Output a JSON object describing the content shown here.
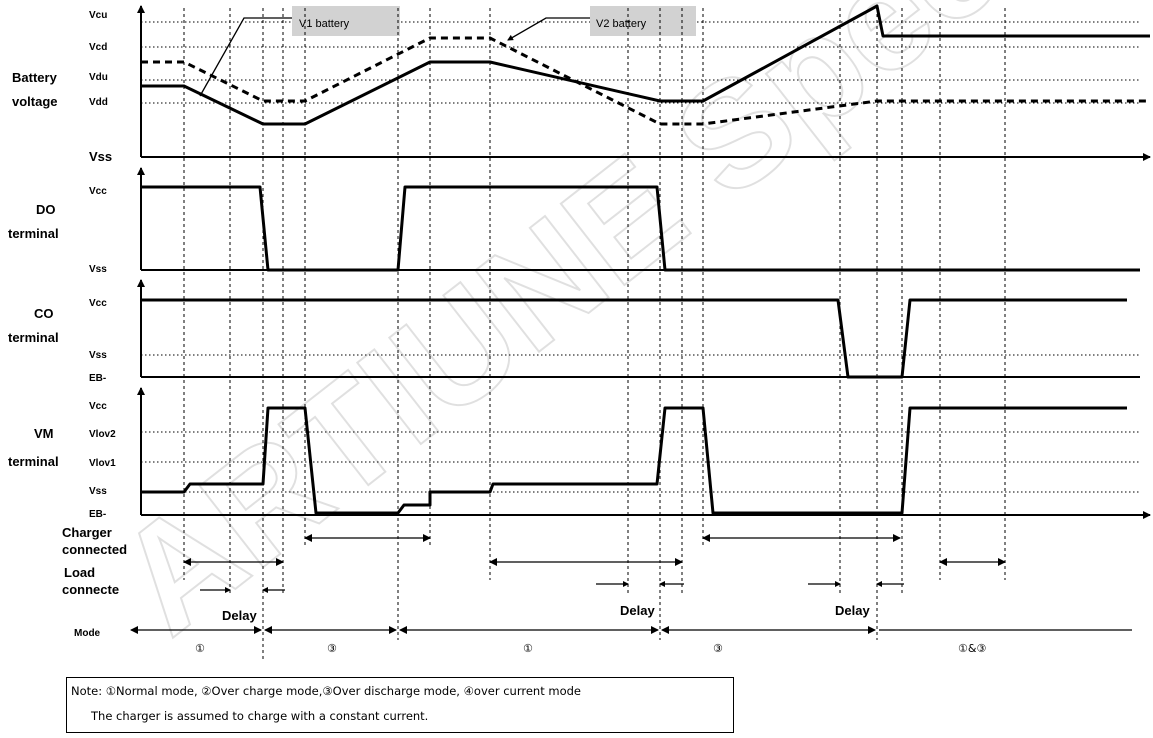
{
  "watermark": "ARTIUNE Specifics Reference Only",
  "callouts": {
    "v1": "V1 battery",
    "v2": "V2 battery"
  },
  "groups": {
    "battery": {
      "line1": "Battery",
      "line2": "voltage"
    },
    "do": {
      "line1": "DO",
      "line2": "terminal"
    },
    "co": {
      "line1": "CO",
      "line2": "terminal"
    },
    "vm": {
      "line1": "VM",
      "line2": "terminal"
    }
  },
  "levels": {
    "battery": [
      "Vcu",
      "Vcd",
      "Vdu",
      "Vdd",
      "Vss"
    ],
    "do": [
      "Vcc",
      "Vss"
    ],
    "co": [
      "Vcc",
      "Vss",
      "EB-"
    ],
    "vm": [
      "Vcc",
      "Vlov2",
      "Vlov1",
      "Vss",
      "EB-"
    ]
  },
  "rows": {
    "charger": {
      "line1": "Charger",
      "line2": "connected"
    },
    "load": {
      "line1": "Load",
      "line2": "connecte"
    }
  },
  "delay": "Delay",
  "mode_label": "Mode",
  "modes": [
    "①",
    "③",
    "①",
    "③",
    "①&③"
  ],
  "note": {
    "line1": "Note: ①Normal mode, ②Over charge mode,③Over discharge mode, ④over current mode",
    "line2": "The charger is assumed to charge with a constant current."
  }
}
